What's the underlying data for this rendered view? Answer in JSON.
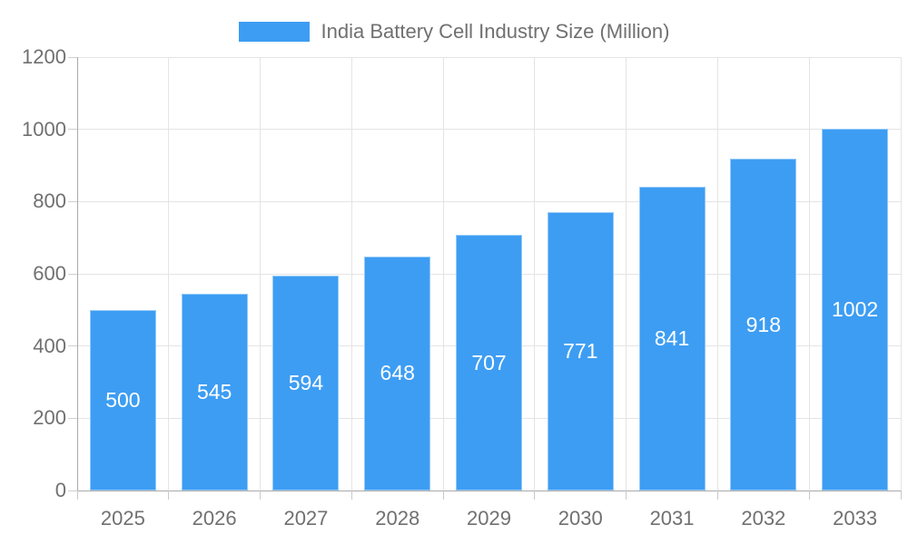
{
  "chart_data": {
    "type": "bar",
    "title": "India Battery Cell Industry Size (Million)",
    "categories": [
      "2025",
      "2026",
      "2027",
      "2028",
      "2029",
      "2030",
      "2031",
      "2032",
      "2033"
    ],
    "values": [
      500,
      545,
      594,
      648,
      707,
      771,
      841,
      918,
      1002
    ],
    "xlabel": "",
    "ylabel": "",
    "ylim": [
      0,
      1200
    ],
    "y_ticks": [
      0,
      200,
      400,
      600,
      800,
      1000,
      1200
    ],
    "grid": true,
    "legend_position": "top-center",
    "bar_color": "#3D9DF3",
    "bar_border_color": "rgba(255,255,255,0.45)",
    "value_label_color": "#FFFFFF",
    "axis_text_color": "#707070",
    "gridline_color": "#E4E4E4",
    "axis_line_color": "#A9A9A9"
  },
  "legend": {
    "label": "India Battery Cell Industry Size (Million)",
    "swatch_color": "#3D9DF3"
  }
}
